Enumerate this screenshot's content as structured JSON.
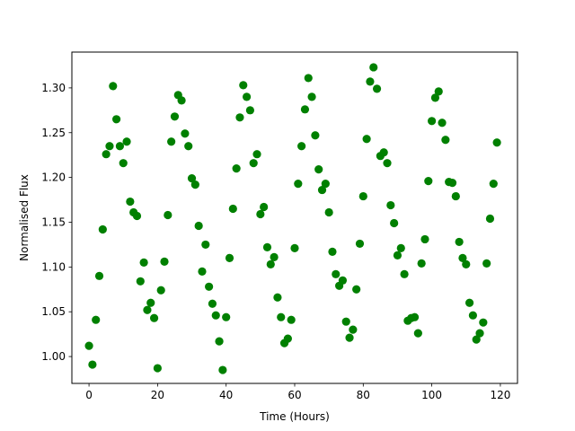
{
  "chart_data": {
    "type": "scatter",
    "title": "",
    "xlabel": "Time (Hours)",
    "ylabel": "Normalised Flux",
    "xlim": [
      -5,
      125
    ],
    "ylim": [
      0.97,
      1.34
    ],
    "xticks": [
      0,
      20,
      40,
      60,
      80,
      100,
      120
    ],
    "yticks": [
      1.0,
      1.05,
      1.1,
      1.15,
      1.2,
      1.25,
      1.3
    ],
    "xtick_labels": [
      "0",
      "20",
      "40",
      "60",
      "80",
      "100",
      "120"
    ],
    "ytick_labels": [
      "1.00",
      "1.05",
      "1.10",
      "1.15",
      "1.20",
      "1.25",
      "1.30"
    ],
    "grid": false,
    "marker_color": "#008000",
    "series": [
      {
        "x": [
          0,
          1,
          2,
          3,
          4,
          5,
          6,
          7,
          8,
          9,
          10,
          11,
          12,
          13,
          14,
          15,
          16,
          17,
          18,
          19,
          20,
          21,
          22,
          23,
          24,
          25,
          26,
          27,
          28,
          29,
          30,
          31,
          32,
          33,
          34,
          35,
          36,
          37,
          38,
          39,
          40,
          41,
          42,
          43,
          44,
          45,
          46,
          47,
          48,
          49,
          50,
          51,
          52,
          53,
          54,
          55,
          56,
          57,
          58,
          59,
          60,
          61,
          62,
          63,
          64,
          65,
          66,
          67,
          68,
          69,
          70,
          71,
          72,
          73,
          74,
          75,
          76,
          77,
          78,
          79,
          80,
          81,
          82,
          83,
          84,
          85,
          86,
          87,
          88,
          89,
          90,
          91,
          92,
          93,
          94,
          95,
          96,
          97,
          98,
          99,
          100,
          101,
          102,
          103,
          104,
          105,
          106,
          107,
          108,
          109,
          110,
          111,
          112,
          113,
          114,
          115,
          116,
          117,
          118,
          119
        ],
        "y": [
          1.012,
          0.991,
          1.041,
          1.09,
          1.142,
          1.226,
          1.235,
          1.302,
          1.265,
          1.235,
          1.216,
          1.24,
          1.173,
          1.161,
          1.157,
          1.084,
          1.105,
          1.052,
          1.06,
          1.043,
          0.987,
          1.074,
          1.106,
          1.158,
          1.24,
          1.268,
          1.292,
          1.286,
          1.249,
          1.235,
          1.199,
          1.192,
          1.146,
          1.095,
          1.125,
          1.078,
          1.059,
          1.046,
          1.017,
          0.985,
          1.044,
          1.11,
          1.165,
          1.21,
          1.267,
          1.303,
          1.29,
          1.275,
          1.216,
          1.226,
          1.159,
          1.167,
          1.122,
          1.103,
          1.111,
          1.066,
          1.044,
          1.015,
          1.02,
          1.041,
          1.121,
          1.193,
          1.235,
          1.276,
          1.311,
          1.29,
          1.247,
          1.209,
          1.186,
          1.193,
          1.161,
          1.117,
          1.092,
          1.079,
          1.085,
          1.039,
          1.021,
          1.03,
          1.075,
          1.126,
          1.179,
          1.243,
          1.307,
          1.323,
          1.299,
          1.224,
          1.228,
          1.216,
          1.169,
          1.149,
          1.113,
          1.121,
          1.092,
          1.04,
          1.043,
          1.044,
          1.026,
          1.104,
          1.131,
          1.196,
          1.263,
          1.289,
          1.296,
          1.261,
          1.242,
          1.195,
          1.194,
          1.179,
          1.128,
          1.11,
          1.103,
          1.06,
          1.046,
          1.019,
          1.026,
          1.038,
          1.104,
          1.154,
          1.193,
          1.239
        ]
      }
    ]
  }
}
